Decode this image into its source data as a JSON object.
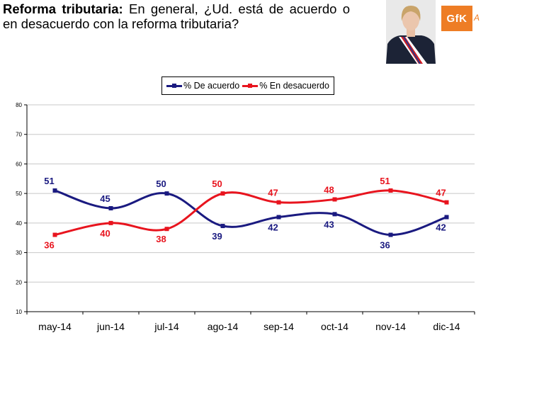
{
  "header": {
    "title": "Reforma tributaria:",
    "question": "En general, ¿Ud. está de acuerdo o en desacuerdo con la reforma tributaria?"
  },
  "logo": {
    "text": "GfK",
    "tail": "A"
  },
  "colors": {
    "acuerdo": "#1a1a80",
    "desacuerdo": "#e8141e",
    "logo": "#ee7d25",
    "grid": "#c8c8c8"
  },
  "chart_data": {
    "type": "line",
    "categories": [
      "may-14",
      "jun-14",
      "jul-14",
      "ago-14",
      "sep-14",
      "oct-14",
      "nov-14",
      "dic-14"
    ],
    "series": [
      {
        "name": "% De acuerdo",
        "values": [
          51,
          45,
          50,
          39,
          42,
          43,
          36,
          42
        ]
      },
      {
        "name": "% En desacuerdo",
        "values": [
          36,
          40,
          38,
          50,
          47,
          48,
          51,
          47
        ]
      }
    ],
    "ylim": [
      10,
      80
    ],
    "yticks": [
      "10",
      "20",
      "30",
      "40",
      "50",
      "60",
      "70",
      "80"
    ],
    "grid": "horizontal",
    "legend": "top-center"
  }
}
